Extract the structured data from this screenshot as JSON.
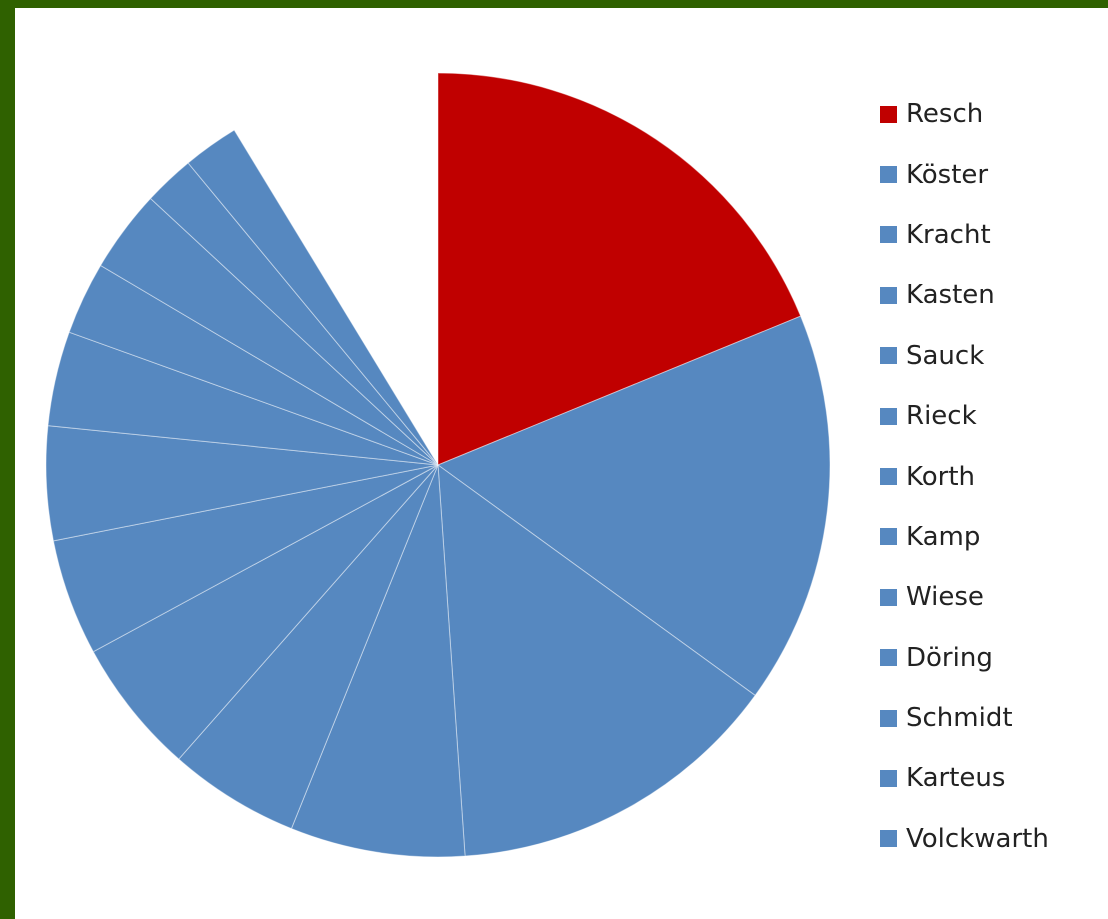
{
  "chart_data": {
    "type": "pie",
    "title": "",
    "categories": [
      "Resch",
      "Köster",
      "Kracht",
      "Kasten",
      "Sauck",
      "Rieck",
      "Korth",
      "Kamp",
      "Wiese",
      "Döring",
      "Schmidt",
      "Karteus",
      "Volckwarth"
    ],
    "values": [
      18.8,
      16.2,
      13.9,
      7.2,
      5.4,
      5.6,
      4.8,
      4.7,
      3.9,
      3.0,
      3.4,
      2.1,
      2.3
    ],
    "highlight": "Resch",
    "colors": {
      "highlight": "#c00000",
      "default": "#5688c0"
    },
    "legend": {
      "position": "right",
      "entries": [
        "Resch",
        "Köster",
        "Kracht",
        "Kasten",
        "Sauck",
        "Rieck",
        "Korth",
        "Kamp",
        "Wiese",
        "Döring",
        "Schmidt",
        "Karteus",
        "Volckwarth"
      ]
    },
    "unfilled_share_note_visible": false
  },
  "legend_items": [
    {
      "label": "Resch",
      "color": "#c00000"
    },
    {
      "label": "Köster",
      "color": "#5688c0"
    },
    {
      "label": "Kracht",
      "color": "#5688c0"
    },
    {
      "label": "Kasten",
      "color": "#5688c0"
    },
    {
      "label": "Sauck",
      "color": "#5688c0"
    },
    {
      "label": "Rieck",
      "color": "#5688c0"
    },
    {
      "label": "Korth",
      "color": "#5688c0"
    },
    {
      "label": "Kamp",
      "color": "#5688c0"
    },
    {
      "label": "Wiese",
      "color": "#5688c0"
    },
    {
      "label": "Döring",
      "color": "#5688c0"
    },
    {
      "label": "Schmidt",
      "color": "#5688c0"
    },
    {
      "label": "Karteus",
      "color": "#5688c0"
    },
    {
      "label": "Volckwarth",
      "color": "#5688c0"
    }
  ],
  "frame": {
    "border_color": "#2f6100",
    "background": "#ffffff"
  }
}
